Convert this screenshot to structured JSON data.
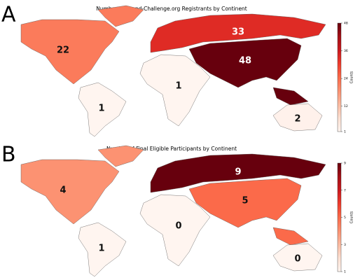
{
  "chart_data": [
    {
      "type": "choropleth",
      "panel_label": "A",
      "title": "Number of Grand-Challenge.org Registrants by Continent",
      "values": [
        22,
        1,
        33,
        1,
        48,
        2
      ],
      "clim": [
        1,
        48
      ],
      "cticks": [
        1,
        12,
        24,
        36,
        48
      ],
      "colorbar_label": "Counts",
      "colormap": [
        "#fff5f0",
        "#fee0d2",
        "#fcbba1",
        "#fc9272",
        "#fb6a4a",
        "#ef3b2c",
        "#cb181d",
        "#a50f15",
        "#67000d"
      ]
    },
    {
      "type": "choropleth",
      "panel_label": "B",
      "title": "Number of Final Eligible Participants by Continent",
      "values": [
        4,
        1,
        9,
        0,
        5,
        0
      ],
      "clim": [
        1,
        9
      ],
      "cticks": [
        1,
        3,
        5,
        7,
        9
      ],
      "colorbar_label": "Counts",
      "colormap": [
        "#fff5f0",
        "#fee0d2",
        "#fcbba1",
        "#fc9272",
        "#fb6a4a",
        "#ef3b2c",
        "#cb181d",
        "#a50f15",
        "#67000d"
      ]
    }
  ]
}
